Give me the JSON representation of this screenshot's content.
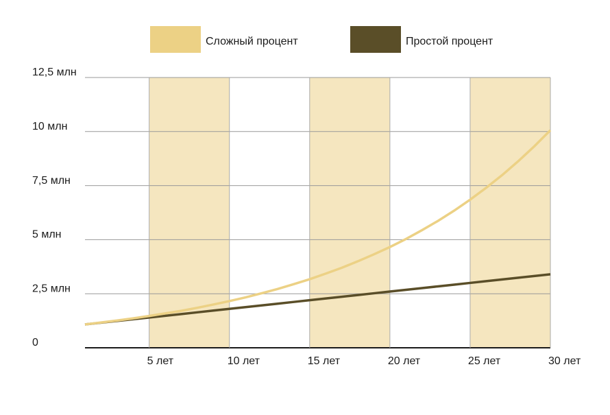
{
  "chart_data": {
    "type": "line",
    "x": [
      1,
      2,
      3,
      4,
      5,
      6,
      7,
      8,
      9,
      10,
      11,
      12,
      13,
      14,
      15,
      16,
      17,
      18,
      19,
      20,
      21,
      22,
      23,
      24,
      25,
      26,
      27,
      28,
      29,
      30
    ],
    "series": [
      {
        "name": "Сложный процент",
        "color": "#ecd185",
        "values": [
          1.08,
          1.17,
          1.26,
          1.36,
          1.47,
          1.59,
          1.71,
          1.85,
          2.0,
          2.16,
          2.33,
          2.52,
          2.72,
          2.94,
          3.17,
          3.43,
          3.7,
          4.0,
          4.32,
          4.66,
          5.03,
          5.44,
          5.87,
          6.34,
          6.85,
          7.4,
          7.99,
          8.63,
          9.32,
          10.06
        ]
      },
      {
        "name": "Простой процент",
        "color": "#5a4e28",
        "values": [
          1.08,
          1.16,
          1.24,
          1.32,
          1.4,
          1.48,
          1.56,
          1.64,
          1.72,
          1.8,
          1.88,
          1.96,
          2.04,
          2.12,
          2.2,
          2.28,
          2.36,
          2.44,
          2.52,
          2.6,
          2.68,
          2.76,
          2.84,
          2.92,
          3.0,
          3.08,
          3.16,
          3.24,
          3.32,
          3.4
        ]
      }
    ],
    "xlim": [
      1,
      30
    ],
    "xticks": [
      {
        "value": 5,
        "label": "5 лет"
      },
      {
        "value": 10,
        "label": "10 лет"
      },
      {
        "value": 15,
        "label": "15 лет"
      },
      {
        "value": 20,
        "label": "20 лет"
      },
      {
        "value": 25,
        "label": "25 лет"
      },
      {
        "value": 30,
        "label": "30 лет"
      }
    ],
    "ylim": [
      0,
      12.5
    ],
    "yticks": [
      0,
      {
        "value": 2.5,
        "label": "2,5 млн"
      },
      {
        "value": 5,
        "label": "5 млн"
      },
      {
        "value": 7.5,
        "label": "7,5 млн"
      },
      {
        "value": 10,
        "label": "10 млн"
      },
      {
        "value": 12.5,
        "label": "12,5 млн"
      }
    ],
    "band_color": "#f5e6bf",
    "grid": true
  }
}
